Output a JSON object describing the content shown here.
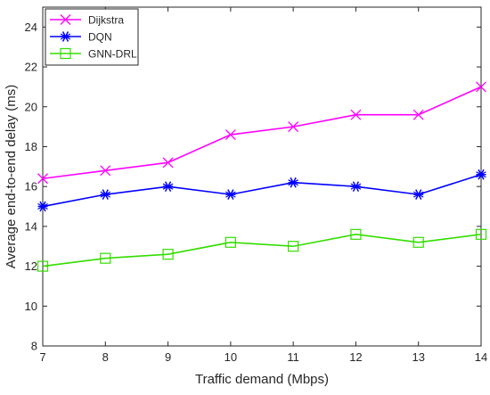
{
  "chart_data": {
    "type": "line",
    "title": "",
    "xlabel": "Traffic demand (Mbps)",
    "ylabel": "Average end-to-end delay (ms)",
    "x": [
      7,
      8,
      9,
      10,
      11,
      12,
      13,
      14
    ],
    "xlim": [
      7,
      14
    ],
    "ylim": [
      8,
      25
    ],
    "xticks": [
      "7",
      "8",
      "9",
      "10",
      "11",
      "12",
      "13",
      "14"
    ],
    "yticks": [
      "8",
      "10",
      "12",
      "14",
      "16",
      "18",
      "20",
      "22",
      "24"
    ],
    "grid": false,
    "legend_position": "top-left",
    "series": [
      {
        "name": "Dijkstra",
        "color": "#ff00ff",
        "marker": "x",
        "values": [
          16.4,
          16.8,
          17.2,
          18.6,
          19.0,
          19.6,
          19.6,
          21.0
        ]
      },
      {
        "name": "DQN",
        "color": "#0000ff",
        "marker": "asterisk",
        "values": [
          15.0,
          15.6,
          16.0,
          15.6,
          16.2,
          16.0,
          15.6,
          16.6
        ]
      },
      {
        "name": "GNN-DRL",
        "color": "#33dd00",
        "marker": "square",
        "values": [
          12.0,
          12.4,
          12.6,
          13.2,
          13.0,
          13.6,
          13.2,
          13.6
        ]
      }
    ]
  }
}
